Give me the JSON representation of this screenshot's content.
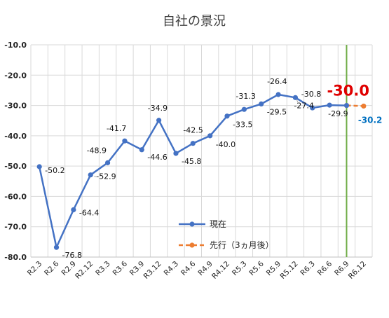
{
  "chart_data": {
    "type": "line",
    "title": "自社の景況",
    "ylim": [
      -80,
      -10
    ],
    "yticks": [
      -10,
      -20,
      -30,
      -40,
      -50,
      -60,
      -70,
      -80
    ],
    "ytick_labels": [
      "-10.0",
      "-20.0",
      "-30.0",
      "-40.0",
      "-50.0",
      "-60.0",
      "-70.0",
      "-80.0"
    ],
    "categories": [
      "R2.3",
      "R2.6",
      "R2.9",
      "R2.12",
      "R3.3",
      "R3.6",
      "R3.9",
      "R3.12",
      "R4.3",
      "R4.6",
      "R4.9",
      "R4.12",
      "R5.3",
      "R5.6",
      "R5.9",
      "R5.12",
      "R6.3",
      "R6.6",
      "R6.9",
      "R6.12"
    ],
    "grid": true,
    "legend_placement": "bottom-center",
    "series": [
      {
        "name": "現在",
        "color": "#4472C4",
        "style": "solid",
        "values": [
          -50.2,
          -76.8,
          -64.4,
          -52.9,
          -48.9,
          -41.7,
          -44.6,
          -34.9,
          -45.8,
          -42.5,
          -40.0,
          -33.5,
          -31.3,
          -29.5,
          -26.4,
          -27.4,
          -30.8,
          -29.9,
          -30.0,
          null
        ],
        "labels": [
          "-50.2",
          "-76.8",
          "-64.4",
          "-52.9",
          "-48.9",
          "-41.7",
          "-44.6",
          "-34.9",
          "-45.8",
          "-42.5",
          "-40.0",
          "-33.5",
          "-31.3",
          "-29.5",
          "-26.4",
          "-27.4",
          "-30.8",
          "-29.9",
          "-30.0",
          null
        ]
      },
      {
        "name": "先行（3ヵ月後）",
        "color": "#ED7D31",
        "style": "dashed",
        "values": [
          null,
          null,
          null,
          null,
          null,
          null,
          null,
          null,
          null,
          null,
          null,
          null,
          null,
          null,
          null,
          null,
          null,
          null,
          -30.0,
          -30.2
        ],
        "labels": [
          null,
          null,
          null,
          null,
          null,
          null,
          null,
          null,
          null,
          null,
          null,
          null,
          null,
          null,
          null,
          null,
          null,
          null,
          null,
          "-30.2"
        ]
      }
    ],
    "vertical_marker": {
      "category": "R6.9",
      "color": "#70AD47"
    },
    "highlight_color": "#E00000",
    "forecast_label_color": "#0070C0"
  }
}
